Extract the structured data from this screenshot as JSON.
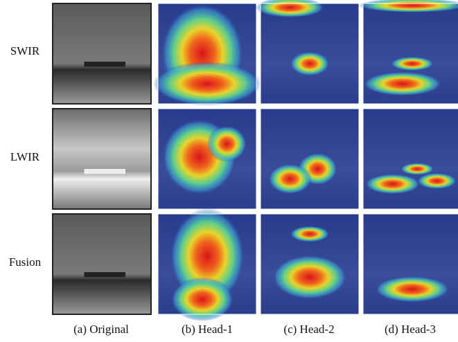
{
  "rows": [
    "SWIR",
    "LWIR",
    "Fusion"
  ],
  "columns": [
    "(a) Original",
    "(b) Head-1",
    "(c) Head-2",
    "(d) Head-3"
  ]
}
